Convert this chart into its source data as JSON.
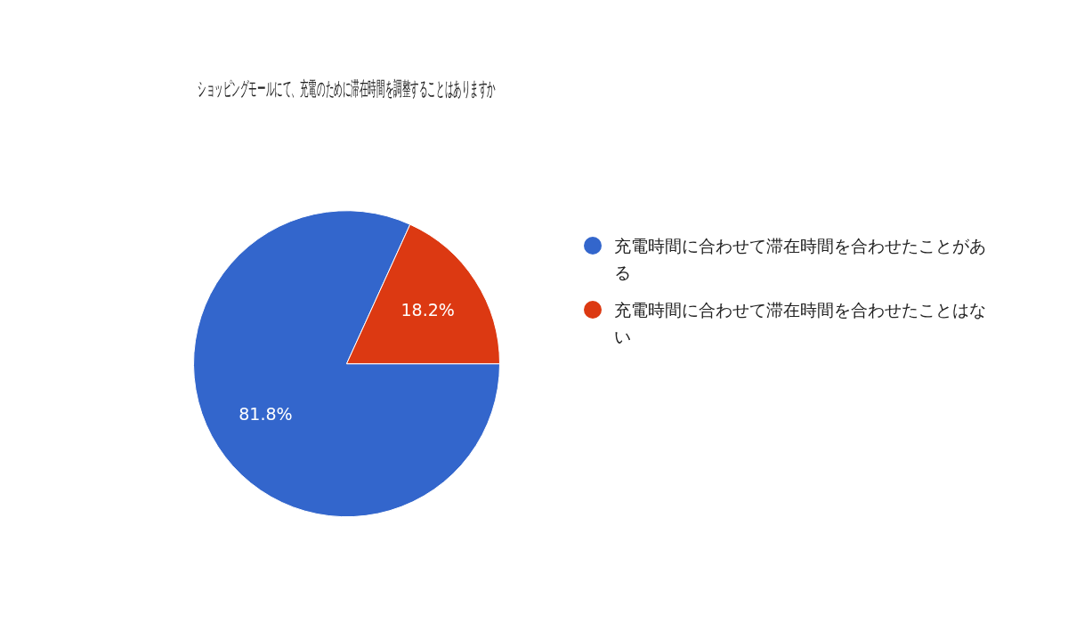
{
  "chart_data": {
    "type": "pie",
    "title": "ショッピングモールにて、充電のために滞在時間を調整することはありますか",
    "categories": [
      "充電時間に合わせて滞在時間を合わせたことがある",
      "充電時間に合わせて滞在時間を合わせたことはない"
    ],
    "values": [
      81.8,
      18.2
    ],
    "colors": [
      "#3366cc",
      "#dc3912"
    ],
    "value_labels": [
      "81.8%",
      "18.2%"
    ],
    "legend": "right"
  }
}
